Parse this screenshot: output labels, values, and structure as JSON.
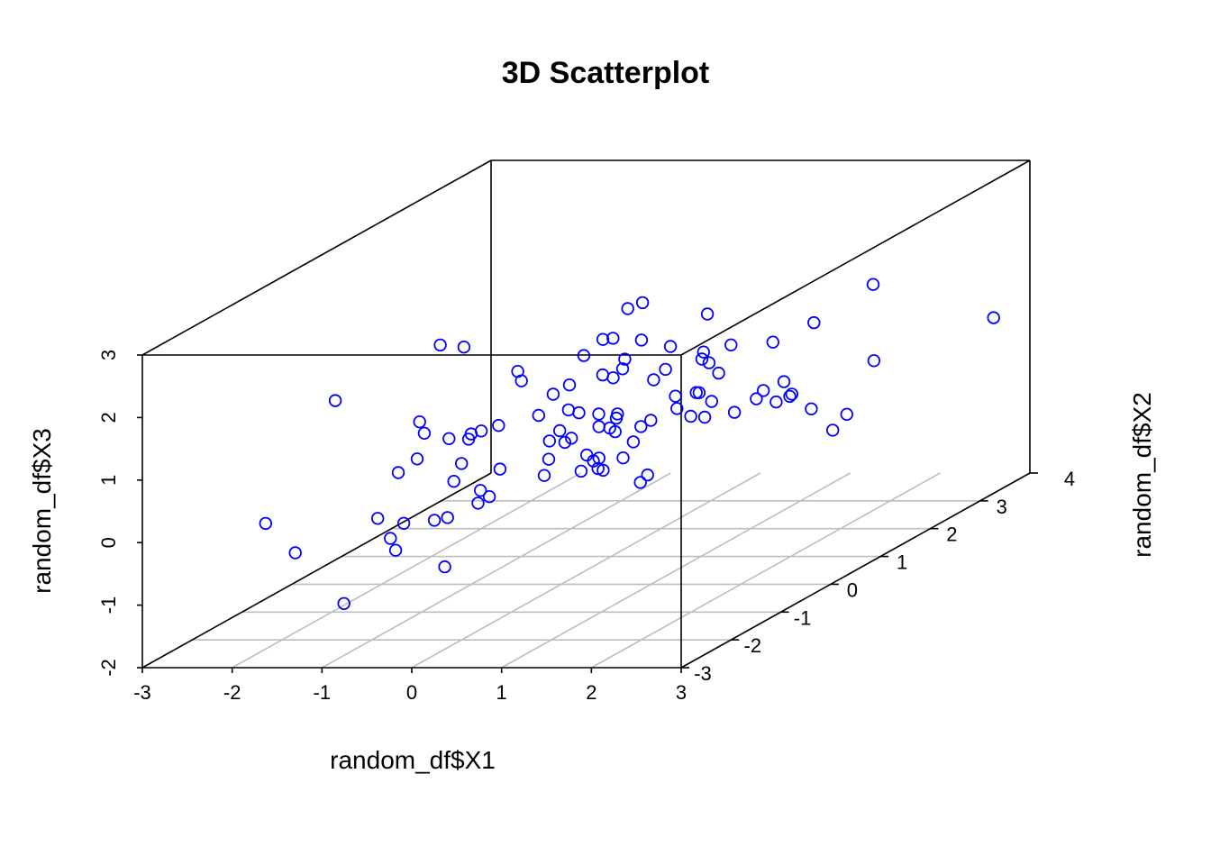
{
  "chart_data": {
    "type": "scatter3d",
    "title": "3D Scatterplot",
    "xlabel": "random_df$X1",
    "ylabel": "random_df$X2",
    "zlabel": "random_df$X3",
    "xlim": [
      -3,
      3
    ],
    "ylim": [
      -3,
      4
    ],
    "zlim": [
      -2,
      3
    ],
    "x_ticks": [
      "-3",
      "-2",
      "-1",
      "0",
      "1",
      "2",
      "3"
    ],
    "y_ticks": [
      "-3",
      "-2",
      "-1",
      "0",
      "1",
      "2",
      "3",
      "4"
    ],
    "z_ticks": [
      "-2",
      "-1",
      "0",
      "1",
      "2",
      "3"
    ],
    "grid": "floor",
    "point_color": "#0000ff",
    "box_color": "#000000",
    "grid_color": "#bebebe",
    "points": [
      [
        1.51,
        3.01,
        -0.62
      ],
      [
        1.87,
        2.08,
        -0.46
      ],
      [
        -1.76,
        0.33,
        0.45
      ],
      [
        0.8,
        3.63,
        0.57
      ],
      [
        1.08,
        2.11,
        0.16
      ],
      [
        0.52,
        1.83,
        0.25
      ],
      [
        0.86,
        1.47,
        0.27
      ],
      [
        0.34,
        1.68,
        0.26
      ],
      [
        -0.21,
        2.01,
        1.61
      ],
      [
        -0.59,
        1.9,
        1.07
      ],
      [
        1.03,
        2.06,
        0.05
      ],
      [
        0.38,
        2.14,
        0.65
      ],
      [
        1.57,
        1.8,
        0.24
      ],
      [
        1.87,
        2.89,
        1.51
      ],
      [
        0.52,
        2.03,
        0.64
      ],
      [
        -0.78,
        1.86,
        0.83
      ],
      [
        -1.01,
        2.58,
        -1.13
      ],
      [
        2.94,
        3.38,
        0.76
      ],
      [
        -2.34,
        1.79,
        1.03
      ],
      [
        -0.58,
        2.9,
        -0.02
      ],
      [
        -0.59,
        2.34,
        0.56
      ],
      [
        -0.22,
        2.49,
        0.33
      ],
      [
        1.22,
        2.05,
        0.96
      ],
      [
        0.39,
        1.62,
        0.09
      ],
      [
        0.69,
        1.69,
        1.57
      ],
      [
        0.1,
        1.43,
        1.27
      ],
      [
        0.69,
        0.95,
        1.38
      ],
      [
        0.49,
        0.35,
        1.29
      ],
      [
        -0.9,
        1.46,
        0.39
      ],
      [
        0.38,
        0.42,
        0.47
      ],
      [
        0.14,
        0.58,
        1.09
      ],
      [
        1.17,
        1.3,
        1.25
      ],
      [
        -0.33,
        0.95,
        0.32
      ],
      [
        -0.01,
        1.06,
        0.83
      ],
      [
        2.24,
        0.55,
        0.76
      ],
      [
        1.43,
        0.9,
        0.35
      ],
      [
        0.4,
        0.52,
        -0.21
      ],
      [
        0.29,
        0.23,
        0.62
      ],
      [
        1.19,
        2.17,
        -0.05
      ],
      [
        0.37,
        2.19,
        0.74
      ],
      [
        0.16,
        0.75,
        1.6
      ],
      [
        0.17,
        1.03,
        1.95
      ],
      [
        0.76,
        1.34,
        0.47
      ],
      [
        -0.33,
        0.74,
        0.46
      ],
      [
        0.81,
        1.14,
        0.18
      ],
      [
        -0.31,
        1.4,
        -0.8
      ],
      [
        0.62,
        0.33,
        0.13
      ],
      [
        -0.41,
        0.71,
        0.14
      ],
      [
        0.81,
        0.14,
        0.46
      ],
      [
        -0.82,
        0.68,
        0.95
      ],
      [
        1.01,
        1.34,
        0.78
      ],
      [
        -0.03,
        0.26,
        0.22
      ],
      [
        -0.59,
        0.19,
        1.32
      ],
      [
        0.02,
        0.13,
        1.13
      ],
      [
        0.81,
        1.42,
        0.04
      ],
      [
        0.36,
        0.48,
        0.51
      ],
      [
        1.72,
        1.37,
        0.63
      ],
      [
        -0.97,
        -0.06,
        0.43
      ],
      [
        0.16,
        0.11,
        -0.24
      ],
      [
        -0.73,
        -0.29,
        0.58
      ],
      [
        0.39,
        -0.63,
        0.55
      ],
      [
        2.09,
        2.51,
        0.46
      ],
      [
        0.08,
        0.83,
        0.13
      ],
      [
        -1.51,
        0.47,
        0.12
      ],
      [
        -1.41,
        0.59,
        1.53
      ],
      [
        1.02,
        -0.25,
        -0.26
      ],
      [
        -0.1,
        -0.07,
        0.03
      ],
      [
        2.18,
        1.09,
        0.32
      ],
      [
        1.25,
        -0.52,
        -0.02
      ],
      [
        -0.2,
        0.02,
        -0.27
      ],
      [
        0.88,
        -0.94,
        0.39
      ],
      [
        -0.36,
        -0.61,
        0.81
      ],
      [
        0.75,
        -0.27,
        0.56
      ],
      [
        0.47,
        -0.09,
        0.56
      ],
      [
        -0.14,
        -0.2,
        0.79
      ],
      [
        -0.72,
        -0.56,
        0.57
      ],
      [
        -0.73,
        -0.84,
        0.02
      ],
      [
        -0.41,
        -0.49,
        0.06
      ],
      [
        -1.06,
        -0.98,
        0.44
      ],
      [
        0.39,
        -0.94,
        0.71
      ],
      [
        1.17,
        -0.31,
        0.76
      ],
      [
        0.56,
        -0.27,
        -0.03
      ],
      [
        0.95,
        -1.2,
        0.6
      ],
      [
        -0.35,
        -1.37,
        0.54
      ],
      [
        0.01,
        -1.46,
        0.05
      ],
      [
        -0.97,
        -1.0,
        0.86
      ],
      [
        -2.0,
        -0.93,
        1.35
      ],
      [
        -1.11,
        -1.27,
        0.35
      ],
      [
        -0.19,
        -1.28,
        0.07
      ],
      [
        -0.4,
        -1.56,
        -0.24
      ],
      [
        -0.68,
        -1.32,
        -0.39
      ],
      [
        0.1,
        -1.85,
        0.12
      ],
      [
        -1.05,
        -1.79,
        -0.15
      ],
      [
        -1.11,
        -1.16,
        -0.51
      ],
      [
        -1.1,
        -1.34,
        -0.86
      ],
      [
        -0.06,
        -2.23,
        -0.73
      ],
      [
        -0.46,
        -2.6,
        -0.11
      ],
      [
        -1.0,
        -2.56,
        -1.17
      ],
      [
        -1.58,
        -2.49,
        -0.39
      ],
      [
        -2.06,
        -2.22,
        -0.04
      ]
    ]
  }
}
